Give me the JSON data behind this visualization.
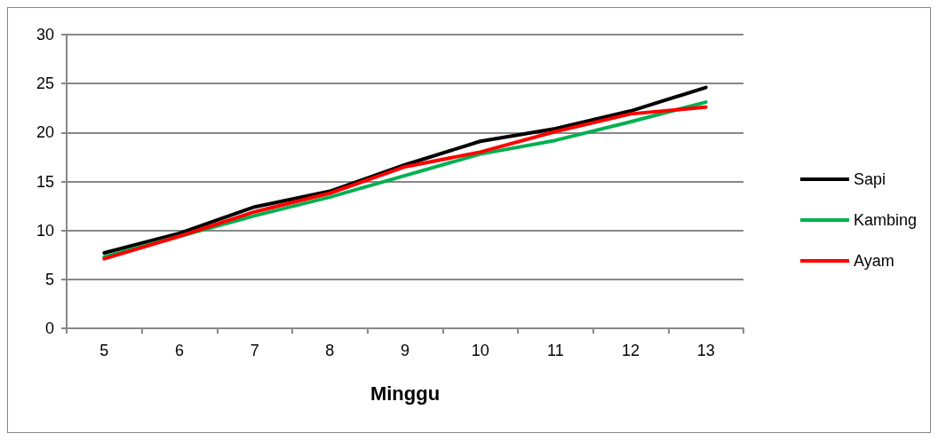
{
  "chart_data": {
    "type": "line",
    "xlabel": "Minggu",
    "categories": [
      "5",
      "6",
      "7",
      "8",
      "9",
      "10",
      "11",
      "12",
      "13"
    ],
    "series": [
      {
        "name": "Sapi",
        "color": "#000000",
        "values": [
          7.7,
          9.7,
          12.4,
          14.0,
          16.7,
          19.1,
          20.4,
          22.2,
          24.6
        ]
      },
      {
        "name": "Kambing",
        "color": "#00b050",
        "values": [
          7.3,
          9.4,
          11.5,
          13.4,
          15.6,
          17.8,
          19.2,
          21.1,
          23.1
        ]
      },
      {
        "name": "Ayam",
        "color": "#ff0000",
        "values": [
          7.1,
          9.4,
          11.9,
          13.8,
          16.5,
          18.0,
          20.1,
          21.9,
          22.6
        ]
      }
    ],
    "ylim": [
      0,
      30
    ],
    "yticks": [
      0,
      5,
      10,
      15,
      20,
      25,
      30
    ],
    "grid": "y",
    "legend": "right",
    "marker": "none",
    "line_style": "solid"
  }
}
